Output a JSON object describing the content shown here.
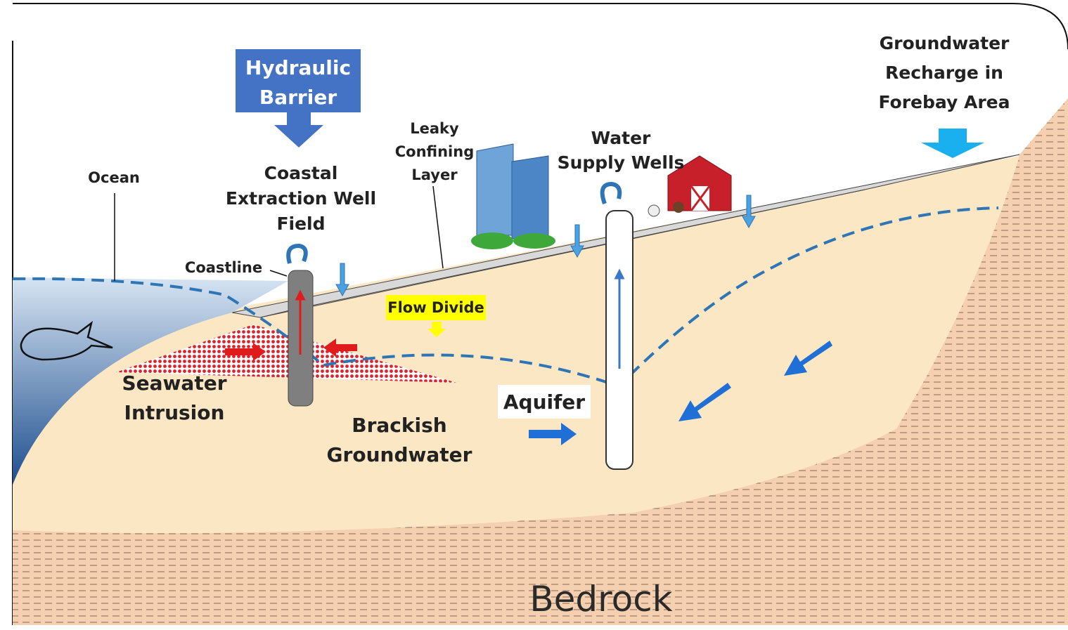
{
  "title_box": {
    "lines": [
      "Hydraulic",
      "Barrier"
    ]
  },
  "labels": {
    "recharge": [
      "Groundwater",
      "Recharge in",
      "Forebay Area"
    ],
    "leaky_layer": [
      "Leaky",
      "Confining",
      "Layer"
    ],
    "supply_wells": [
      "Water",
      "Supply Wells"
    ],
    "ocean": "Ocean",
    "extraction_field": [
      "Coastal",
      "Extraction Well",
      "Field"
    ],
    "coastline": "Coastline",
    "flow_divide": "Flow Divide",
    "seawater": [
      "Seawater",
      "Intrusion"
    ],
    "aquifer": "Aquifer",
    "brackish": [
      "Brackish",
      "Groundwater"
    ],
    "bedrock": "Bedrock"
  }
}
